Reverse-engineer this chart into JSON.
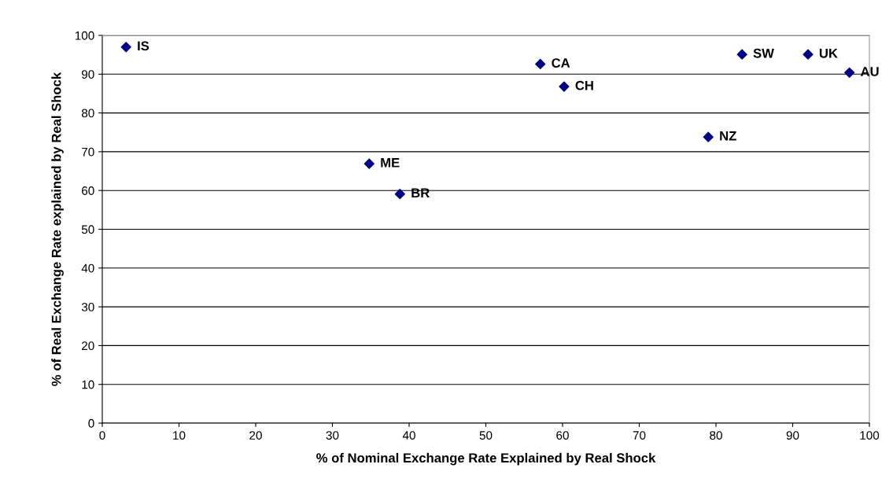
{
  "chart_data": {
    "type": "scatter",
    "xlabel": "% of Nominal Exchange Rate Explained by Real Shock",
    "ylabel": "% of Real Exchange Rate explained by Real Shock",
    "x": [
      3.1,
      34.8,
      38.8,
      57.1,
      60.2,
      79.0,
      83.4,
      92.0,
      97.4
    ],
    "values": [
      97.0,
      66.9,
      59.1,
      92.6,
      86.8,
      73.8,
      95.1,
      95.1,
      90.4
    ],
    "color": "#000080",
    "marker": "diamond",
    "annotations": [
      {
        "text": "IS",
        "x": 3.1,
        "y": 97.0
      },
      {
        "text": "ME",
        "x": 34.8,
        "y": 66.9
      },
      {
        "text": "BR",
        "x": 38.8,
        "y": 59.1
      },
      {
        "text": "CA",
        "x": 57.1,
        "y": 92.6
      },
      {
        "text": "CH",
        "x": 60.2,
        "y": 86.8
      },
      {
        "text": "NZ",
        "x": 79.0,
        "y": 73.8
      },
      {
        "text": "SW",
        "x": 83.4,
        "y": 95.1
      },
      {
        "text": "UK",
        "x": 92.0,
        "y": 95.1
      },
      {
        "text": "AU",
        "x": 97.4,
        "y": 90.4
      }
    ],
    "xlim": [
      0,
      100
    ],
    "xticks": [
      0,
      10,
      20,
      30,
      40,
      50,
      60,
      70,
      80,
      90,
      100
    ],
    "ylim": [
      0,
      100
    ],
    "yticks": [
      0,
      10,
      20,
      30,
      40,
      50,
      60,
      70,
      80,
      90,
      100
    ],
    "grid": "y"
  }
}
